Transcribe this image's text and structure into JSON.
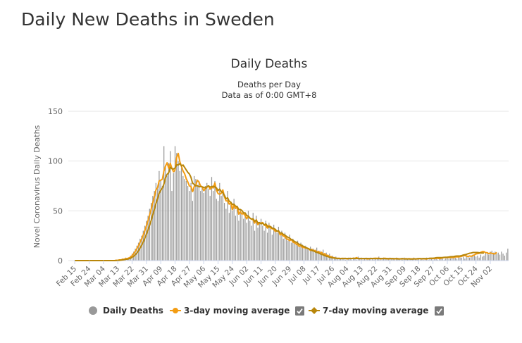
{
  "page": {
    "title": "Daily New Deaths in Sweden"
  },
  "chart_data": {
    "type": "bar",
    "title": "Daily Deaths",
    "subtitle_line1": "Deaths per Day",
    "subtitle_line2": "Data as of 0:00 GMT+8",
    "ylabel": "Novel Coronavirus Daily Deaths",
    "xlabel": "",
    "ylim": [
      0,
      150
    ],
    "yticks": [
      "0",
      "50",
      "100",
      "150"
    ],
    "grid": true,
    "legend_position": "bottom-center",
    "date_range": [
      "Feb 15",
      "Nov 03"
    ],
    "x_tick_labels": [
      "Feb 15",
      "Feb 24",
      "Mar 04",
      "Mar 13",
      "Mar 22",
      "Mar 31",
      "Apr 09",
      "Apr 18",
      "Apr 27",
      "May 06",
      "May 15",
      "May 24",
      "Jun 02",
      "Jun 11",
      "Jun 20",
      "Jun 29",
      "Jul 08",
      "Jul 17",
      "Jul 26",
      "Aug 04",
      "Aug 13",
      "Aug 22",
      "Aug 31",
      "Sep 09",
      "Sep 18",
      "Sep 27",
      "Oct 06",
      "Oct 15",
      "Oct 24",
      "Nov 02"
    ],
    "series": [
      {
        "name": "Daily Deaths",
        "kind": "bar",
        "color": "#999999",
        "values": [
          0,
          0,
          0,
          0,
          0,
          0,
          0,
          0,
          0,
          0,
          0,
          0,
          0,
          0,
          0,
          0,
          0,
          0,
          0,
          0,
          0,
          0,
          0,
          0,
          0,
          0,
          1,
          0,
          1,
          1,
          2,
          1,
          3,
          2,
          3,
          5,
          7,
          9,
          12,
          15,
          18,
          22,
          25,
          30,
          35,
          40,
          45,
          52,
          58,
          65,
          70,
          78,
          72,
          90,
          80,
          75,
          115,
          95,
          85,
          98,
          110,
          70,
          88,
          115,
          108,
          100,
          90,
          95,
          85,
          82,
          80,
          75,
          70,
          78,
          60,
          85,
          82,
          75,
          80,
          70,
          73,
          68,
          75,
          78,
          72,
          65,
          84,
          70,
          80,
          62,
          60,
          78,
          65,
          70,
          58,
          52,
          70,
          48,
          56,
          50,
          62,
          45,
          55,
          40,
          52,
          48,
          42,
          46,
          38,
          50,
          40,
          35,
          48,
          30,
          45,
          33,
          38,
          42,
          35,
          30,
          40,
          28,
          38,
          32,
          26,
          36,
          30,
          28,
          34,
          25,
          30,
          22,
          28,
          24,
          20,
          26,
          18,
          22,
          20,
          16,
          20,
          14,
          18,
          16,
          12,
          15,
          13,
          11,
          14,
          10,
          12,
          9,
          13,
          8,
          10,
          7,
          11,
          6,
          8,
          5,
          7,
          4,
          5,
          3,
          4,
          2,
          3,
          2,
          2,
          3,
          1,
          2,
          3,
          2,
          1,
          3,
          2,
          1,
          4,
          2,
          3,
          1,
          2,
          3,
          1,
          2,
          3,
          2,
          1,
          3,
          2,
          4,
          1,
          2,
          3,
          2,
          2,
          1,
          3,
          2,
          2,
          1,
          3,
          2,
          1,
          2,
          1,
          3,
          2,
          2,
          1,
          2,
          1,
          3,
          2,
          1,
          2,
          1,
          2,
          1,
          2,
          3,
          1,
          2,
          2,
          1,
          3,
          2,
          1,
          2,
          3,
          2,
          1,
          2,
          3,
          2,
          2,
          3,
          4,
          3,
          2,
          4,
          3,
          3,
          4,
          2,
          5,
          4,
          3,
          4,
          6,
          5,
          4,
          5,
          3,
          6,
          4,
          5,
          8,
          7,
          6,
          9,
          10,
          8,
          9,
          7,
          8,
          6,
          9,
          7,
          5,
          8,
          12
        ]
      },
      {
        "name": "3-day moving average",
        "kind": "line",
        "color": "#f39c12",
        "values": [
          0,
          0,
          0,
          0,
          0,
          0,
          0,
          0,
          0,
          0,
          0,
          0,
          0,
          0,
          0,
          0,
          0,
          0,
          0,
          0,
          0,
          0,
          0,
          0,
          0,
          0,
          0.3,
          0.3,
          0.7,
          0.7,
          1.3,
          1.3,
          2,
          2,
          2.7,
          3.3,
          5,
          7,
          9.3,
          12,
          15,
          18.3,
          21.7,
          25.7,
          30,
          35,
          40,
          45.7,
          51.7,
          58.3,
          64.3,
          71,
          73.3,
          80,
          80.7,
          81.7,
          90,
          95,
          98.3,
          92.7,
          97.7,
          92.7,
          89.3,
          91,
          103.7,
          107.7,
          99.3,
          95,
          90,
          87.3,
          82.3,
          79,
          75,
          74.3,
          69.3,
          74.3,
          75.7,
          80.7,
          79,
          75,
          74.3,
          70.3,
          72,
          73.7,
          75,
          71.7,
          73.7,
          73,
          78,
          70.7,
          67.3,
          66.7,
          67.7,
          71,
          64.3,
          60,
          60,
          56.7,
          58,
          51.3,
          56,
          52.3,
          54,
          46.7,
          49,
          46.7,
          47.3,
          45.3,
          42,
          44.7,
          42.7,
          41.7,
          41,
          37.7,
          41,
          36,
          37.7,
          37.7,
          38.3,
          35.7,
          35,
          32.7,
          35.3,
          32.7,
          32,
          31.3,
          29.3,
          29.7,
          29.7,
          25.7,
          26.7,
          24.7,
          24,
          22,
          21.3,
          20,
          21.3,
          18.7,
          18,
          16.7,
          16,
          14.3,
          15.3,
          13.3,
          13,
          12.7,
          12.3,
          12,
          10.3,
          11.3,
          9.7,
          10.3,
          8.3,
          9.3,
          7.3,
          8.3,
          6.3,
          7,
          5.3,
          5.3,
          4,
          4,
          3,
          3,
          2.3,
          2.3,
          2.3,
          2,
          2.3,
          2,
          2.3,
          1.7,
          2,
          2.3,
          2,
          2.3,
          2.3,
          3,
          2,
          2,
          2,
          2,
          2,
          2,
          1.7,
          2,
          2,
          2,
          2.3,
          2.3,
          2.3,
          2.3,
          1.7,
          2,
          2.3,
          2.3,
          2,
          1.7,
          2,
          2,
          2,
          1.7,
          2,
          2,
          1.7,
          1.7,
          2,
          1.7,
          2,
          1.7,
          2,
          1.7,
          1.7,
          2,
          1.7,
          1.7,
          2,
          2,
          1.7,
          2,
          1.7,
          1.7,
          2,
          2.3,
          2,
          2,
          2,
          2.3,
          2.3,
          2,
          2.3,
          2.7,
          3,
          3,
          3,
          3.3,
          3,
          3.3,
          3,
          3.7,
          3.7,
          3.7,
          4,
          4.3,
          5,
          5,
          4.7,
          4,
          4.7,
          4.3,
          5,
          5.7,
          6.7,
          7,
          7.3,
          8.3,
          9,
          9,
          8,
          8,
          7,
          7.7,
          7.3,
          7,
          6.7,
          8.3
        ]
      },
      {
        "name": "7-day moving average",
        "kind": "line",
        "color": "#b8860b",
        "values": [
          0,
          0,
          0,
          0,
          0,
          0,
          0,
          0,
          0,
          0,
          0,
          0,
          0,
          0,
          0,
          0,
          0,
          0,
          0,
          0,
          0,
          0,
          0,
          0,
          0,
          0,
          0.1,
          0.1,
          0.3,
          0.4,
          0.7,
          0.9,
          1.3,
          1.4,
          1.9,
          2.4,
          3.3,
          4.3,
          5.9,
          7.6,
          9.9,
          12.6,
          15.4,
          18.7,
          22.4,
          26.4,
          30.7,
          35.4,
          40.3,
          45.9,
          51.4,
          57.4,
          62,
          67.6,
          70.6,
          72.9,
          76.9,
          83.4,
          86.6,
          88.3,
          93.7,
          92.4,
          92,
          93,
          96.3,
          96,
          97.6,
          95,
          96.1,
          93.6,
          91.1,
          88.7,
          87,
          83.6,
          77.7,
          76.7,
          75.1,
          75.3,
          74.1,
          74.4,
          74,
          73.6,
          72.9,
          74.4,
          75.1,
          73.9,
          74.4,
          74.7,
          73.9,
          73,
          70.4,
          71.9,
          69.4,
          68.1,
          65.6,
          62.1,
          63.1,
          59.6,
          58.7,
          56.3,
          56.7,
          54.7,
          54.3,
          51.4,
          51.3,
          50.3,
          47.9,
          47.9,
          45.3,
          44.7,
          42.7,
          41.6,
          42,
          39.6,
          40.7,
          37.9,
          38.3,
          36.9,
          37.6,
          35.9,
          36.9,
          34.7,
          33.6,
          34.3,
          32.6,
          32.3,
          31.4,
          29.4,
          29.9,
          27.6,
          27.9,
          26.3,
          25.6,
          24.3,
          23.3,
          22.6,
          21.1,
          20.6,
          19.1,
          18.6,
          17.6,
          16.3,
          15.9,
          14.7,
          14.3,
          13.1,
          12.6,
          11.6,
          11.1,
          10.1,
          9.7,
          8.9,
          8.3,
          7.7,
          7,
          6.3,
          5.7,
          5,
          4.4,
          4,
          3.4,
          3.1,
          2.7,
          2.6,
          2.4,
          2.1,
          2.1,
          2,
          2,
          2,
          2.1,
          2.1,
          2.1,
          2.1,
          2,
          2.3,
          2.1,
          2.1,
          2.1,
          2.1,
          2,
          2,
          2.1,
          2.1,
          2.1,
          2,
          2.1,
          2.1,
          2,
          1.9,
          2,
          2.1,
          2.1,
          2,
          2,
          1.9,
          1.9,
          2,
          1.9,
          1.9,
          1.9,
          1.9,
          1.9,
          1.7,
          1.7,
          1.9,
          1.9,
          1.7,
          1.7,
          1.7,
          1.7,
          1.6,
          1.6,
          1.7,
          1.7,
          1.9,
          1.9,
          1.9,
          1.9,
          2,
          2,
          2,
          2.1,
          2.3,
          2.4,
          2.4,
          2.6,
          2.9,
          3,
          3,
          3,
          3.1,
          3.3,
          3.4,
          3.4,
          3.6,
          3.9,
          4,
          4.1,
          4.4,
          4.6,
          4.6,
          4.7,
          5,
          5.6,
          5.9,
          6.3,
          6.9,
          7.4,
          7.6,
          8.1,
          8.1,
          8.1,
          8.1,
          7.9,
          7.7,
          7.6,
          7.7
        ]
      }
    ],
    "legend": [
      {
        "label": "Daily Deaths",
        "color": "#999999",
        "marker": "circle",
        "checkbox": false
      },
      {
        "label": "3-day moving average",
        "color": "#f39c12",
        "marker": "line-dot",
        "checkbox": true
      },
      {
        "label": "7-day moving average",
        "color": "#b8860b",
        "marker": "line-diamond",
        "checkbox": true
      }
    ]
  }
}
